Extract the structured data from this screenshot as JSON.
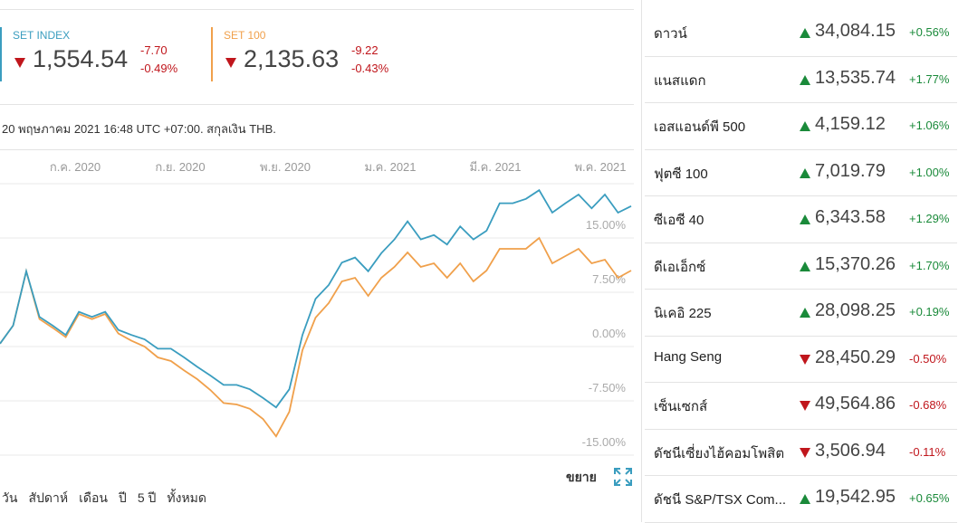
{
  "indices": [
    {
      "value": "1,554.54",
      "change": "-7.70",
      "change_pct": "-0.49%"
    },
    {
      "value": "2,135.63",
      "change": "-9.22",
      "change_pct": "-0.43%"
    }
  ],
  "timestamp": "20 พฤษภาคม 2021 16:48 UTC +07:00. สกุลเงิน THB.",
  "chart_data": {
    "type": "line",
    "x_axis_labels": [
      "ก.ค. 2020",
      "ก.ย. 2020",
      "พ.ย. 2020",
      "ม.ค. 2021",
      "มี.ค. 2021",
      "พ.ค. 2021"
    ],
    "series": [
      {
        "name": "SET INDEX",
        "color": "#3a9dbf",
        "values": [
          0.4,
          2.9,
          10.4,
          4.1,
          2.9,
          1.6,
          4.8,
          4.1,
          4.8,
          2.3,
          1.6,
          1.0,
          -0.3,
          -0.3,
          -1.5,
          -2.8,
          -4.0,
          -5.3,
          -5.3,
          -5.9,
          -7.1,
          -8.4,
          -5.9,
          1.6,
          6.6,
          8.5,
          11.6,
          12.3,
          10.4,
          12.9,
          14.8,
          17.3,
          14.8,
          15.4,
          14.1,
          16.6,
          14.8,
          16.0,
          19.8,
          19.8,
          20.4,
          21.6,
          18.5,
          19.8,
          21.0,
          19.1,
          21.0,
          18.5,
          19.4
        ]
      },
      {
        "name": "SET 100",
        "color": "#f0a04b",
        "values": [
          0.4,
          2.9,
          10.4,
          3.8,
          2.6,
          1.3,
          4.5,
          3.8,
          4.5,
          1.8,
          0.8,
          0.0,
          -1.5,
          -2.0,
          -3.3,
          -4.5,
          -6.0,
          -7.8,
          -8.0,
          -8.6,
          -10.0,
          -12.4,
          -9.0,
          -0.5,
          4.0,
          6.0,
          9.0,
          9.5,
          7.0,
          9.5,
          11.0,
          13.0,
          11.0,
          11.5,
          9.5,
          11.5,
          9.0,
          10.5,
          13.5,
          13.5,
          13.5,
          15.0,
          11.5,
          12.5,
          13.5,
          11.5,
          12.0,
          9.5,
          10.5
        ]
      }
    ],
    "ylim": [
      -15,
      22.5
    ],
    "yticks": [
      {
        "value": 15,
        "label": "15.00%"
      },
      {
        "value": 7.5,
        "label": "7.50%"
      },
      {
        "value": 0,
        "label": "0.00%"
      },
      {
        "value": -7.5,
        "label": "-7.50%"
      },
      {
        "value": -15,
        "label": "-15.00%"
      }
    ],
    "grid": true
  },
  "expand_label": "ขยาย",
  "range_tabs": [
    "วัน",
    "สัปดาห์",
    "เดือน",
    "ปี",
    "5 ปี",
    "ทั้งหมด"
  ],
  "markets": [
    {
      "name": "ดาวน์",
      "value": "34,084.15",
      "change": "+0.56%"
    },
    {
      "name": "แนสแดก",
      "value": "13,535.74",
      "change": "+1.77%"
    },
    {
      "name": "เอสแอนด์พี 500",
      "value": "4,159.12",
      "change": "+1.06%"
    },
    {
      "name": "ฟุตซี 100",
      "value": "7,019.79",
      "change": "+1.00%"
    },
    {
      "name": "ซีเอซี 40",
      "value": "6,343.58",
      "change": "+1.29%"
    },
    {
      "name": "ดีเอเอ็กซ์",
      "value": "15,370.26",
      "change": "+1.70%"
    },
    {
      "name": "นิเคอิ 225",
      "value": "28,098.25",
      "change": "+0.19%"
    },
    {
      "name": "Hang Seng",
      "value": "28,450.29",
      "change": "-0.50%"
    },
    {
      "name": "เซ็นเซกส์",
      "value": "49,564.86",
      "change": "-0.68%"
    },
    {
      "name": "ดัชนีเซี่ยงไฮ้คอมโพสิต",
      "value": "3,506.94",
      "change": "-0.11%"
    },
    {
      "name": "ดัชนี S&P/TSX Com...",
      "value": "19,542.95",
      "change": "+0.65%"
    }
  ]
}
